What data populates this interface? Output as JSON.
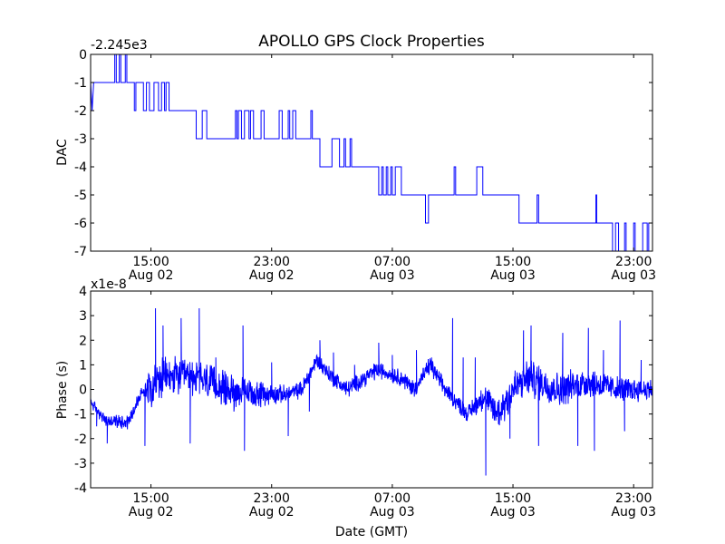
{
  "chart_data": [
    {
      "type": "line",
      "title": "APOLLO GPS Clock Properties",
      "ylabel": "DAC",
      "offset_label": "-2.245e3",
      "xlim_hours": [
        11.0,
        48.25
      ],
      "ylim": [
        -7,
        0
      ],
      "yticks": [
        0,
        -1,
        -2,
        -3,
        -4,
        -5,
        -6,
        -7
      ],
      "yticklabels": [
        "0",
        "-1",
        "-2",
        "-3",
        "-4",
        "-5",
        "-6",
        "-7"
      ],
      "xticks_hours": [
        15,
        23,
        31,
        39,
        47
      ],
      "xticklabels": [
        [
          "15:00",
          "Aug 02"
        ],
        [
          "23:00",
          "Aug 02"
        ],
        [
          "07:00",
          "Aug 03"
        ],
        [
          "15:00",
          "Aug 03"
        ],
        [
          "23:00",
          "Aug 03"
        ]
      ],
      "color": "#0000ff",
      "series": [
        {
          "name": "DAC",
          "points": [
            [
              11.0,
              -1
            ],
            [
              11.1,
              -2
            ],
            [
              11.2,
              -1
            ],
            [
              12.6,
              -1
            ],
            [
              12.6,
              0
            ],
            [
              12.7,
              0
            ],
            [
              12.7,
              -1
            ],
            [
              12.9,
              -1
            ],
            [
              12.9,
              0
            ],
            [
              13.0,
              0
            ],
            [
              13.0,
              -1
            ],
            [
              13.3,
              -1
            ],
            [
              13.3,
              0
            ],
            [
              13.4,
              0
            ],
            [
              13.4,
              -1
            ],
            [
              13.9,
              -1
            ],
            [
              13.9,
              -2
            ],
            [
              14.0,
              -2
            ],
            [
              14.0,
              -1
            ],
            [
              14.5,
              -1
            ],
            [
              14.5,
              -2
            ],
            [
              14.7,
              -2
            ],
            [
              14.7,
              -1
            ],
            [
              14.9,
              -1
            ],
            [
              14.9,
              -2
            ],
            [
              15.2,
              -2
            ],
            [
              15.2,
              -1
            ],
            [
              15.5,
              -1
            ],
            [
              15.5,
              -2
            ],
            [
              15.7,
              -2
            ],
            [
              15.7,
              -1
            ],
            [
              15.9,
              -1
            ],
            [
              15.9,
              -2
            ],
            [
              16.0,
              -2
            ],
            [
              16.0,
              -1
            ],
            [
              16.2,
              -1
            ],
            [
              16.2,
              -2
            ],
            [
              18.0,
              -2
            ],
            [
              18.0,
              -3
            ],
            [
              18.4,
              -3
            ],
            [
              18.4,
              -2
            ],
            [
              18.7,
              -2
            ],
            [
              18.7,
              -3
            ],
            [
              20.6,
              -3
            ],
            [
              20.6,
              -2
            ],
            [
              20.7,
              -2
            ],
            [
              20.7,
              -3
            ],
            [
              20.8,
              -3
            ],
            [
              20.8,
              -2
            ],
            [
              21.0,
              -2
            ],
            [
              21.0,
              -3
            ],
            [
              21.2,
              -3
            ],
            [
              21.2,
              -2
            ],
            [
              21.5,
              -2
            ],
            [
              21.5,
              -3
            ],
            [
              21.6,
              -3
            ],
            [
              21.6,
              -2
            ],
            [
              21.8,
              -2
            ],
            [
              21.8,
              -3
            ],
            [
              22.3,
              -3
            ],
            [
              22.3,
              -2
            ],
            [
              22.5,
              -2
            ],
            [
              22.5,
              -3
            ],
            [
              23.5,
              -3
            ],
            [
              23.5,
              -2
            ],
            [
              23.7,
              -2
            ],
            [
              23.7,
              -3
            ],
            [
              24.1,
              -3
            ],
            [
              24.1,
              -2
            ],
            [
              24.2,
              -2
            ],
            [
              24.2,
              -3
            ],
            [
              24.4,
              -3
            ],
            [
              24.4,
              -2
            ],
            [
              24.6,
              -2
            ],
            [
              24.6,
              -3
            ],
            [
              25.6,
              -3
            ],
            [
              25.6,
              -2
            ],
            [
              25.7,
              -2
            ],
            [
              25.7,
              -3
            ],
            [
              26.2,
              -3
            ],
            [
              26.2,
              -4
            ],
            [
              27.0,
              -4
            ],
            [
              27.0,
              -3
            ],
            [
              27.5,
              -3
            ],
            [
              27.5,
              -4
            ],
            [
              27.8,
              -4
            ],
            [
              27.8,
              -3
            ],
            [
              27.9,
              -3
            ],
            [
              27.9,
              -4
            ],
            [
              28.2,
              -4
            ],
            [
              28.2,
              -3
            ],
            [
              28.3,
              -3
            ],
            [
              28.3,
              -4
            ],
            [
              30.1,
              -4
            ],
            [
              30.1,
              -5
            ],
            [
              30.3,
              -5
            ],
            [
              30.3,
              -4
            ],
            [
              30.4,
              -4
            ],
            [
              30.4,
              -5
            ],
            [
              30.6,
              -5
            ],
            [
              30.6,
              -4
            ],
            [
              30.7,
              -4
            ],
            [
              30.7,
              -5
            ],
            [
              30.9,
              -5
            ],
            [
              30.9,
              -4
            ],
            [
              31.0,
              -4
            ],
            [
              31.0,
              -5
            ],
            [
              31.2,
              -5
            ],
            [
              31.2,
              -4
            ],
            [
              31.6,
              -4
            ],
            [
              31.6,
              -5
            ],
            [
              33.2,
              -5
            ],
            [
              33.2,
              -6
            ],
            [
              33.4,
              -6
            ],
            [
              33.4,
              -5
            ],
            [
              35.1,
              -5
            ],
            [
              35.1,
              -4
            ],
            [
              35.2,
              -4
            ],
            [
              35.2,
              -5
            ],
            [
              36.6,
              -5
            ],
            [
              36.6,
              -4
            ],
            [
              37.0,
              -4
            ],
            [
              37.0,
              -5
            ],
            [
              39.4,
              -5
            ],
            [
              39.4,
              -6
            ],
            [
              40.6,
              -6
            ],
            [
              40.6,
              -5
            ],
            [
              40.7,
              -5
            ],
            [
              40.7,
              -6
            ],
            [
              44.5,
              -6
            ],
            [
              44.5,
              -5
            ],
            [
              44.55,
              -5
            ],
            [
              44.55,
              -6
            ],
            [
              45.6,
              -6
            ],
            [
              45.6,
              -7
            ],
            [
              45.8,
              -7
            ],
            [
              45.8,
              -6
            ],
            [
              46.0,
              -6
            ],
            [
              46.0,
              -7
            ],
            [
              46.4,
              -7
            ],
            [
              46.4,
              -6
            ],
            [
              46.5,
              -6
            ],
            [
              46.5,
              -7
            ],
            [
              47.0,
              -7
            ],
            [
              47.0,
              -6
            ],
            [
              47.1,
              -6
            ],
            [
              47.1,
              -7
            ],
            [
              47.6,
              -7
            ],
            [
              47.6,
              -6
            ],
            [
              47.9,
              -6
            ],
            [
              47.9,
              -7
            ],
            [
              48.0,
              -7
            ],
            [
              48.0,
              -6
            ],
            [
              48.25,
              -6
            ]
          ]
        }
      ]
    },
    {
      "type": "line",
      "title": "",
      "xlabel": "Date (GMT)",
      "ylabel": "Phase (s)",
      "offset_label": "x1e-8",
      "xlim_hours": [
        11.0,
        48.25
      ],
      "ylim": [
        -4,
        4
      ],
      "yticks": [
        4,
        3,
        2,
        1,
        0,
        -1,
        -2,
        -3,
        -4
      ],
      "yticklabels": [
        "4",
        "3",
        "2",
        "1",
        "0",
        "-1",
        "-2",
        "-3",
        "-4"
      ],
      "xticks_hours": [
        15,
        23,
        31,
        39,
        47
      ],
      "xticklabels": [
        [
          "15:00",
          "Aug 02"
        ],
        [
          "23:00",
          "Aug 02"
        ],
        [
          "07:00",
          "Aug 03"
        ],
        [
          "15:00",
          "Aug 03"
        ],
        [
          "23:00",
          "Aug 03"
        ]
      ],
      "color": "#0000ff",
      "series": [
        {
          "name": "Phase",
          "sample_step_hours": 0.02,
          "trend": [
            [
              11.0,
              -0.5
            ],
            [
              12.0,
              -1.3
            ],
            [
              13.5,
              -1.3
            ],
            [
              14.5,
              0.0
            ],
            [
              16.0,
              0.5
            ],
            [
              18.0,
              0.5
            ],
            [
              20.0,
              0.0
            ],
            [
              22.0,
              -0.2
            ],
            [
              24.0,
              -0.2
            ],
            [
              25.0,
              0.0
            ],
            [
              26.0,
              1.2
            ],
            [
              27.0,
              0.5
            ],
            [
              28.0,
              0.0
            ],
            [
              30.0,
              0.8
            ],
            [
              31.5,
              0.5
            ],
            [
              32.5,
              0.0
            ],
            [
              33.5,
              1.0
            ],
            [
              34.5,
              0.0
            ],
            [
              36.0,
              -1.0
            ],
            [
              37.0,
              -0.3
            ],
            [
              38.0,
              -1.0
            ],
            [
              39.0,
              0.0
            ],
            [
              40.0,
              0.5
            ],
            [
              42.0,
              0.0
            ],
            [
              44.0,
              0.3
            ],
            [
              46.0,
              0.0
            ],
            [
              48.25,
              0.0
            ]
          ],
          "noise_amp": [
            [
              11.0,
              0.3
            ],
            [
              14.5,
              0.5
            ],
            [
              15.0,
              1.2
            ],
            [
              20.0,
              1.0
            ],
            [
              24.0,
              0.5
            ],
            [
              28.0,
              0.5
            ],
            [
              36.0,
              0.5
            ],
            [
              38.5,
              1.2
            ],
            [
              42.0,
              1.0
            ],
            [
              48.25,
              0.6
            ]
          ],
          "spikes": [
            [
              11.4,
              -1.5
            ],
            [
              12.1,
              -2.2
            ],
            [
              14.6,
              -2.3
            ],
            [
              15.3,
              3.3
            ],
            [
              15.8,
              2.6
            ],
            [
              17.0,
              2.9
            ],
            [
              17.6,
              -2.2
            ],
            [
              18.2,
              3.3
            ],
            [
              19.3,
              1.3
            ],
            [
              20.5,
              -0.9
            ],
            [
              21.1,
              2.6
            ],
            [
              21.2,
              -2.5
            ],
            [
              23.0,
              1.1
            ],
            [
              24.1,
              -1.9
            ],
            [
              25.5,
              -0.9
            ],
            [
              26.2,
              2.0
            ],
            [
              27.1,
              1.5
            ],
            [
              28.5,
              1.0
            ],
            [
              30.1,
              1.9
            ],
            [
              31.0,
              1.4
            ],
            [
              32.6,
              1.6
            ],
            [
              33.6,
              1.3
            ],
            [
              35.0,
              2.9
            ],
            [
              35.7,
              1.3
            ],
            [
              36.5,
              1.3
            ],
            [
              37.2,
              -3.5
            ],
            [
              38.0,
              -0.5
            ],
            [
              38.8,
              -2.0
            ],
            [
              39.7,
              2.4
            ],
            [
              40.2,
              2.6
            ],
            [
              40.7,
              -2.3
            ],
            [
              42.3,
              2.3
            ],
            [
              43.3,
              -2.3
            ],
            [
              44.0,
              2.5
            ],
            [
              44.4,
              -2.5
            ],
            [
              45.0,
              1.6
            ],
            [
              46.1,
              2.8
            ],
            [
              46.4,
              -1.7
            ],
            [
              47.5,
              1.2
            ]
          ]
        }
      ]
    }
  ]
}
